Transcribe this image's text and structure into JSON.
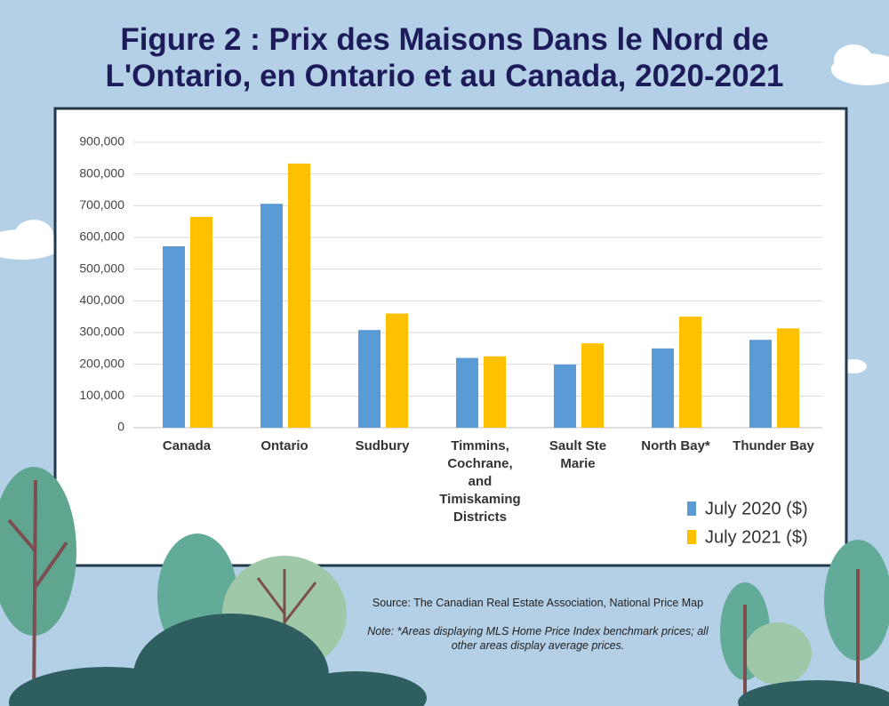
{
  "chart_data": {
    "type": "bar",
    "title": "Figure 2 : Prix des Maisons Dans le Nord de L'Ontario, en Ontario et au Canada, 2020-2021",
    "categories": [
      "Canada",
      "Ontario",
      "Sudbury",
      "Timmins, Cochrane, and Timiskaming Districts",
      "Sault Ste Marie",
      "North Bay*",
      "Thunder Bay"
    ],
    "series": [
      {
        "name": "July 2020 ($)",
        "color": "#5b9bd5",
        "values": [
          572000,
          706000,
          308000,
          220000,
          199000,
          250000,
          277000
        ]
      },
      {
        "name": "July 2021 ($)",
        "color": "#ffc000",
        "values": [
          665000,
          833000,
          360000,
          225000,
          266000,
          350000,
          313000
        ]
      }
    ],
    "ylim": [
      0,
      900000
    ],
    "yticks": [
      0,
      {
        "value": 100000,
        "label": "100,000"
      },
      {
        "value": 200000,
        "label": "200,000"
      },
      {
        "value": 300000,
        "label": "300,000"
      },
      {
        "value": 400000,
        "label": "400,000"
      },
      {
        "value": 500000,
        "label": "500,000"
      },
      {
        "value": 600000,
        "label": "600,000"
      },
      {
        "value": 700000,
        "label": "700,000"
      },
      {
        "value": 800000,
        "label": "800,000"
      },
      {
        "value": 900000,
        "label": "900,000"
      }
    ],
    "grid": true,
    "legend": "lower right",
    "source": "Source: The Canadian Real Estate Association, National Price Map",
    "note": "Note: *Areas displaying MLS Home Price Index benchmark prices; all other areas display average prices."
  }
}
